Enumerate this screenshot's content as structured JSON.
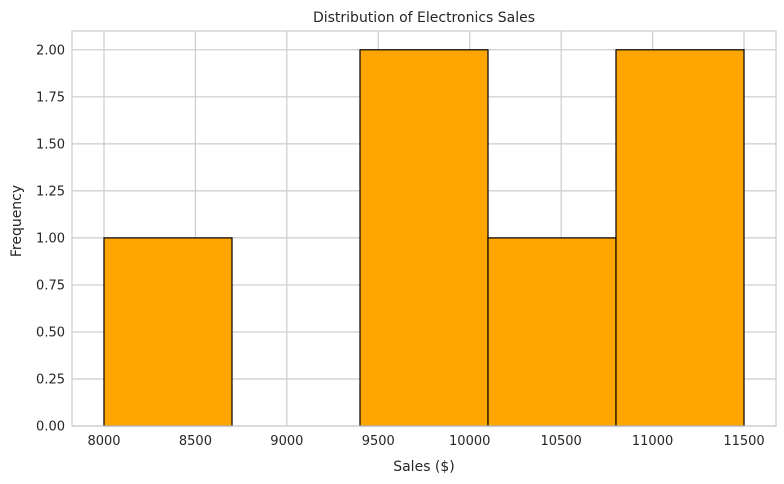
{
  "chart_data": {
    "type": "bar",
    "subtype": "histogram",
    "title": "Distribution of Electronics Sales",
    "xlabel": "Sales ($)",
    "ylabel": "Frequency",
    "xlim": [
      7825,
      11675
    ],
    "ylim": [
      0,
      2.1
    ],
    "x_ticks": [
      8000,
      8500,
      9000,
      9500,
      10000,
      10500,
      11000,
      11500
    ],
    "y_ticks": [
      0.0,
      0.25,
      0.5,
      0.75,
      1.0,
      1.25,
      1.5,
      1.75,
      2.0
    ],
    "bins": [
      {
        "start": 8000,
        "end": 8700,
        "count": 1
      },
      {
        "start": 8700,
        "end": 9400,
        "count": 0
      },
      {
        "start": 9400,
        "end": 10100,
        "count": 2
      },
      {
        "start": 10100,
        "end": 10800,
        "count": 1
      },
      {
        "start": 10800,
        "end": 11500,
        "count": 2
      }
    ],
    "grid": true,
    "colors": {
      "bar_fill": "#FFA500",
      "bar_edge": "#000000",
      "grid": "#cccccc",
      "axes_edge": "#cccccc",
      "text": "#262626"
    }
  }
}
